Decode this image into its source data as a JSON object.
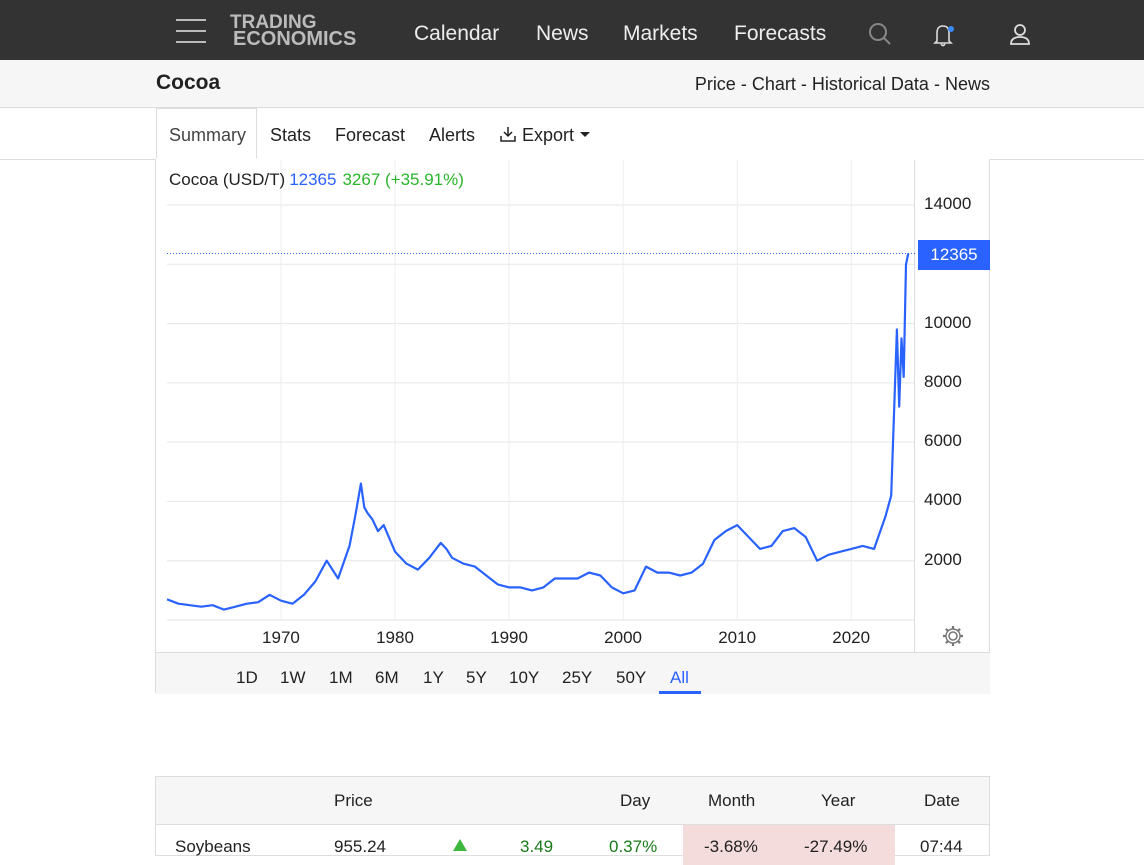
{
  "nav": {
    "logo_line1": "TRADING",
    "logo_line2": "ECONOMICS",
    "links": [
      "Calendar",
      "News",
      "Markets",
      "Forecasts"
    ]
  },
  "header": {
    "title": "Cocoa",
    "crumbs": [
      "Price",
      "Chart",
      "Historical Data",
      "News"
    ],
    "separator": "-"
  },
  "tabs": [
    "Summary",
    "Stats",
    "Forecast",
    "Alerts",
    "Export"
  ],
  "legend": {
    "name": "Cocoa (USD/T)",
    "price": "12365",
    "change": "3267 (+35.91%)"
  },
  "price_tag": "12365",
  "ranges": [
    "1D",
    "1W",
    "1M",
    "6M",
    "1Y",
    "5Y",
    "10Y",
    "25Y",
    "50Y",
    "All"
  ],
  "active_range": "All",
  "colors": {
    "line": "#2a62ff",
    "topbar": "#333333",
    "positive": "#2bb52b",
    "negative_bg": "#f5dcdc"
  },
  "chart_data": {
    "type": "line",
    "title": "",
    "series": [
      {
        "name": "Cocoa (USD/T)",
        "x": [
          1960,
          1961,
          1962,
          1963,
          1964,
          1965,
          1966,
          1967,
          1968,
          1969,
          1970,
          1971,
          1972,
          1973,
          1974,
          1975,
          1976,
          1976.5,
          1977,
          1977.3,
          1977.6,
          1978,
          1978.5,
          1979,
          1980,
          1981,
          1982,
          1983,
          1984,
          1984.5,
          1985,
          1986,
          1987,
          1988,
          1989,
          1990,
          1991,
          1992,
          1993,
          1994,
          1995,
          1996,
          1997,
          1998,
          1999,
          2000,
          2001,
          2002,
          2003,
          2004,
          2005,
          2006,
          2007,
          2008,
          2009,
          2010,
          2011,
          2012,
          2013,
          2014,
          2015,
          2016,
          2017,
          2018,
          2019,
          2020,
          2021,
          2022,
          2023,
          2023.5,
          2024,
          2024.2,
          2024.4,
          2024.6,
          2024.8,
          2025
        ],
        "values": [
          700,
          550,
          500,
          450,
          500,
          350,
          450,
          550,
          600,
          850,
          650,
          550,
          850,
          1300,
          2000,
          1400,
          2500,
          3500,
          4600,
          3800,
          3600,
          3400,
          3000,
          3200,
          2300,
          1900,
          1700,
          2100,
          2600,
          2400,
          2100,
          1900,
          1800,
          1500,
          1200,
          1100,
          1100,
          1000,
          1100,
          1400,
          1400,
          1400,
          1600,
          1500,
          1100,
          900,
          1000,
          1800,
          1600,
          1600,
          1500,
          1600,
          1900,
          2700,
          3000,
          3200,
          2800,
          2400,
          2500,
          3000,
          3100,
          2800,
          2000,
          2200,
          2300,
          2400,
          2500,
          2400,
          3500,
          4200,
          9800,
          7200,
          9500,
          8200,
          12000,
          12365
        ]
      }
    ],
    "xlabel": "",
    "ylabel": "",
    "xticks": [
      "1970",
      "1980",
      "1990",
      "2000",
      "2010",
      "2020"
    ],
    "yticks": [
      "2000",
      "4000",
      "6000",
      "8000",
      "10000",
      "14000"
    ],
    "xlim": [
      1960,
      2025.5
    ],
    "ylim": [
      0,
      14000
    ],
    "last_value": 12365,
    "grid": true
  },
  "table": {
    "headers": [
      "Price",
      "Day",
      "Month",
      "Year",
      "Date"
    ],
    "row": {
      "name": "Soybeans",
      "price": "955.24",
      "change": "3.49",
      "day": "0.37%",
      "month": "-3.68%",
      "year": "-27.49%",
      "date": "07:44"
    }
  }
}
